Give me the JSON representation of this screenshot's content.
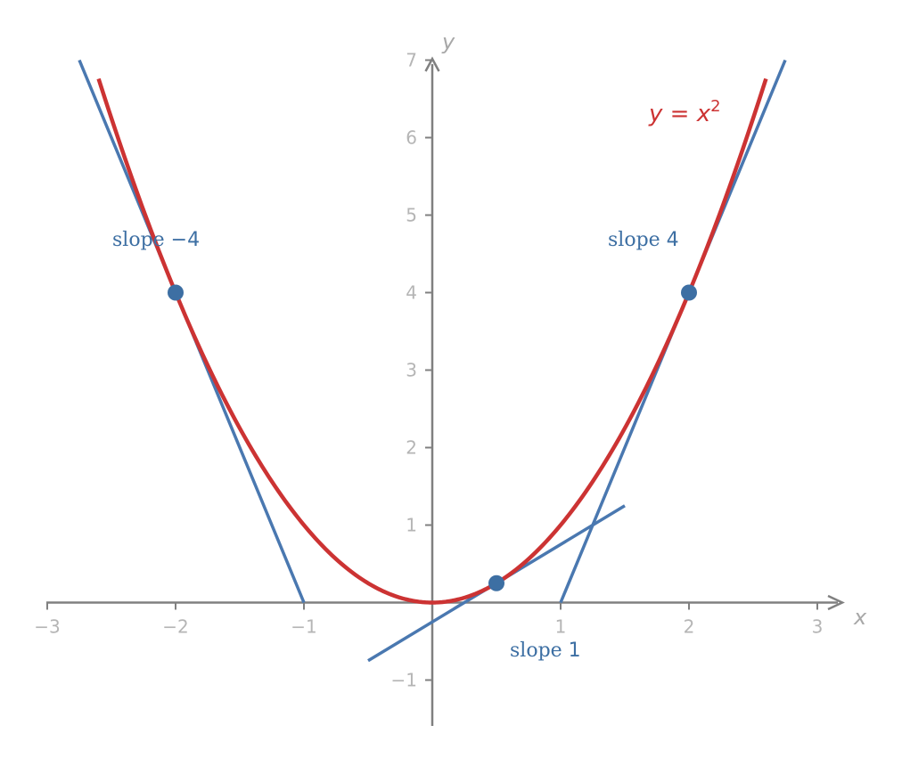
{
  "chart_data": {
    "type": "line",
    "xlabel": "x",
    "ylabel": "y",
    "xlim": [
      -3,
      3
    ],
    "ylim": [
      -1,
      7
    ],
    "x_ticks": [
      {
        "value": -3,
        "label": "−3"
      },
      {
        "value": -2,
        "label": "−2"
      },
      {
        "value": -1,
        "label": "−1"
      },
      {
        "value": 1,
        "label": "1"
      },
      {
        "value": 2,
        "label": "2"
      },
      {
        "value": 3,
        "label": "3"
      }
    ],
    "y_ticks": [
      {
        "value": -1,
        "label": "−1"
      },
      {
        "value": 1,
        "label": "1"
      },
      {
        "value": 2,
        "label": "2"
      },
      {
        "value": 3,
        "label": "3"
      },
      {
        "value": 4,
        "label": "4"
      },
      {
        "value": 5,
        "label": "5"
      },
      {
        "value": 6,
        "label": "6"
      },
      {
        "value": 7,
        "label": "7"
      }
    ],
    "grid": false,
    "curve": {
      "label_var": "y",
      "label_eq": " = ",
      "label_base": "x",
      "label_exp": "2",
      "color": "#cc3333",
      "x_range": [
        -2.6,
        2.6
      ]
    },
    "tangents": [
      {
        "point": [
          -2,
          4
        ],
        "slope": -4,
        "x_range": [
          -2.75,
          -1
        ],
        "label_prefix": "slope ",
        "label_value": "−4",
        "color": "#4a78b0"
      },
      {
        "point": [
          0.5,
          0.25
        ],
        "slope": 1,
        "x_range": [
          -0.5,
          1.5
        ],
        "label_prefix": "slope ",
        "label_value": "1",
        "color": "#4a78b0"
      },
      {
        "point": [
          2,
          4
        ],
        "slope": 4,
        "x_range": [
          1,
          2.75
        ],
        "label_prefix": "slope ",
        "label_value": "4",
        "color": "#4a78b0"
      }
    ],
    "point_color": "#3d6fa3",
    "axis_color": "#808080"
  }
}
